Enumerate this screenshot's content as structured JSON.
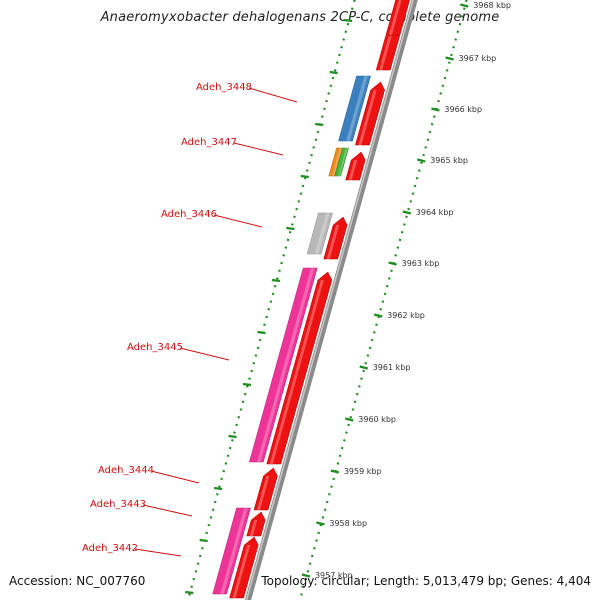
{
  "title": "Anaeromyxobacter dehalogenans 2CP-C, complete genome",
  "footer": {
    "accession": "Accession: NC_007760",
    "topology": "Topology: circular; Length: 5,013,479 bp; Genes: 4,404"
  },
  "ruler": {
    "ticks": [
      "3957 kbp",
      "3958 kbp",
      "3959 kbp",
      "3960 kbp",
      "3961 kbp",
      "3962 kbp",
      "3963 kbp",
      "3964 kbp",
      "3965 kbp",
      "3966 kbp",
      "3967 kbp",
      "3968 kbp"
    ]
  },
  "gene_labels": [
    "Adeh_3442",
    "Adeh_3443",
    "Adeh_3444",
    "Adeh_3445",
    "Adeh_3446",
    "Adeh_3447",
    "Adeh_3448"
  ],
  "colors": {
    "cds": "#ee1111",
    "magenta": "#ee3399",
    "blue": "#3a80c0",
    "gray": "#b8b8b8",
    "orange": "#f08a1c",
    "green": "#44b43c",
    "backbone": "#8a8a8a",
    "tick_dots": "#1e8e1e",
    "label": "#cc1111"
  }
}
